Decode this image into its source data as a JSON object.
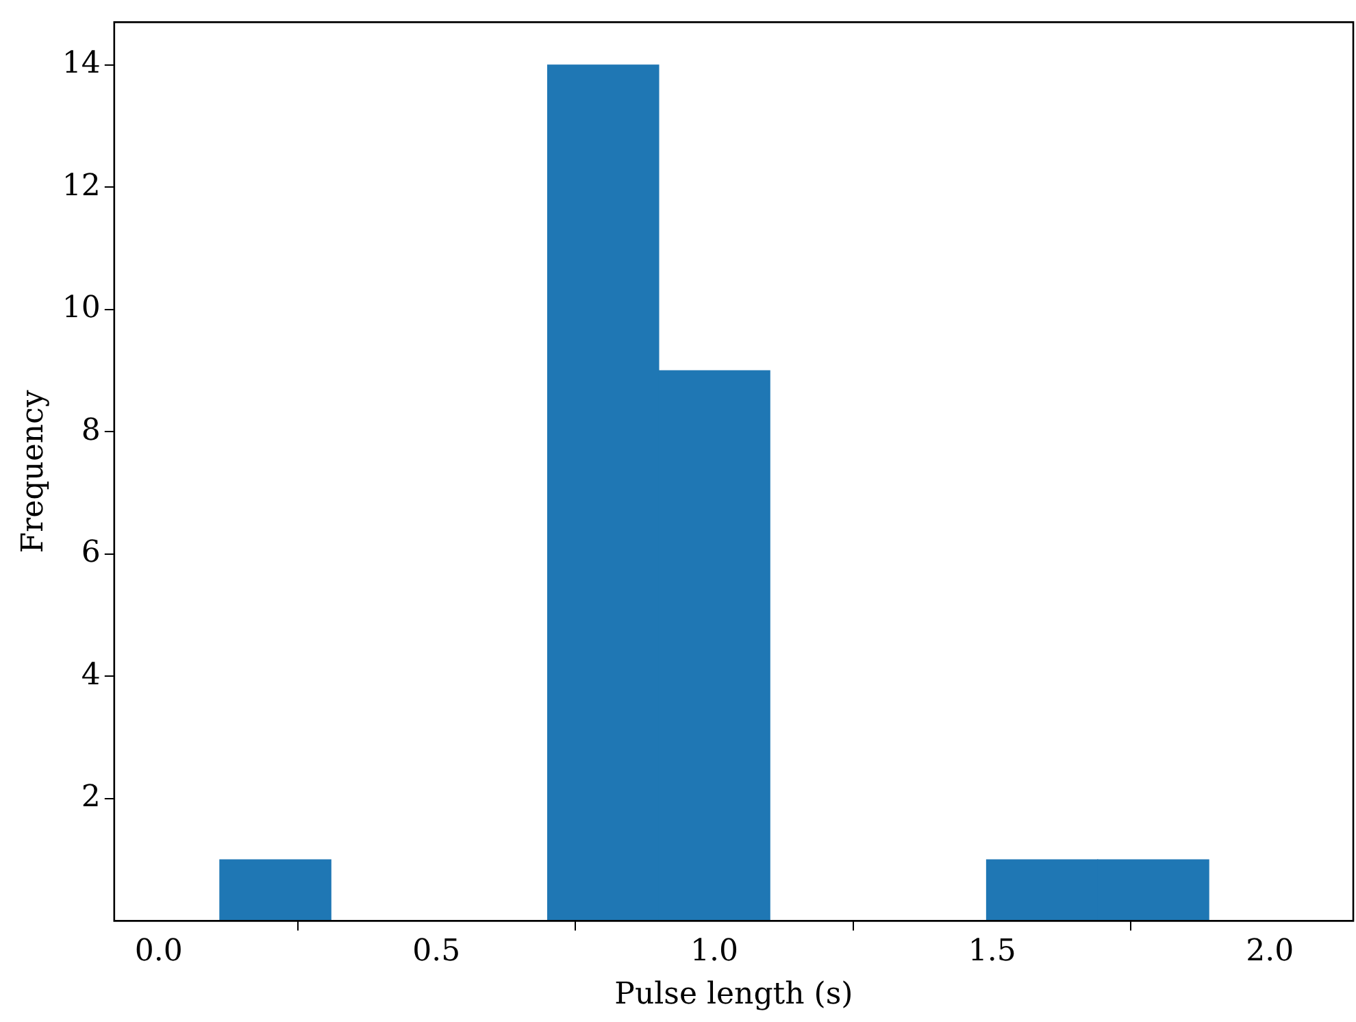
{
  "chart_data": {
    "type": "histogram",
    "xlabel": "Pulse length (s)",
    "ylabel": "Frequency",
    "bins": [
      0.11,
      0.31,
      0.7,
      0.9,
      1.1,
      1.49,
      1.69,
      1.89
    ],
    "values": [
      1,
      0,
      14,
      9,
      0,
      1,
      1
    ],
    "color": "#1f77b4",
    "xlim": [
      -0.08,
      2.15
    ],
    "xticks": [
      {
        "value": 0,
        "label": "0.0"
      },
      {
        "value": 0.5,
        "label": "0.5"
      },
      {
        "value": 1,
        "label": "1.0"
      },
      {
        "value": 1.5,
        "label": "1.5"
      },
      {
        "value": 2,
        "label": "2.0"
      }
    ],
    "ylim": [
      0,
      14.7
    ],
    "yticks": [
      2,
      4,
      6,
      8,
      10,
      12,
      14
    ]
  }
}
